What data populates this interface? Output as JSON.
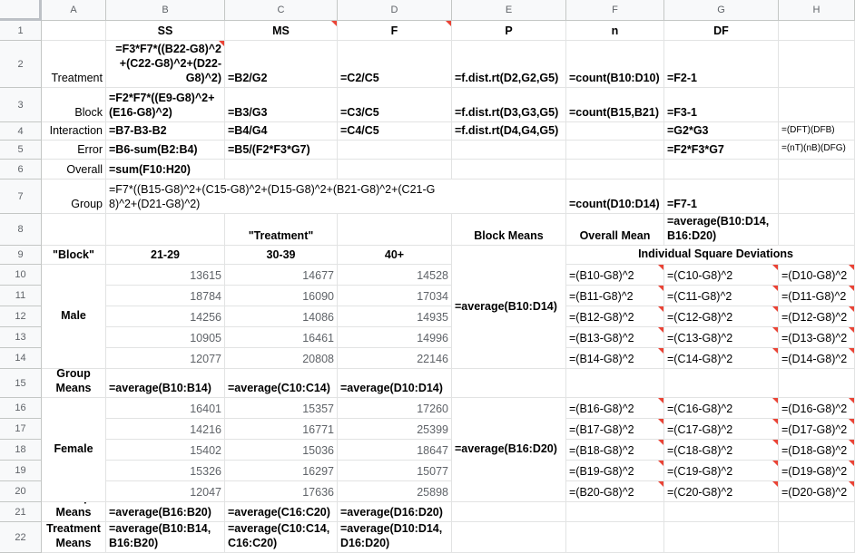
{
  "columns": [
    "A",
    "B",
    "C",
    "D",
    "E",
    "F",
    "G",
    "H"
  ],
  "rows": [
    "1",
    "2",
    "3",
    "4",
    "5",
    "6",
    "7",
    "8",
    "9",
    "10",
    "11",
    "12",
    "13",
    "14",
    "15",
    "16",
    "17",
    "18",
    "19",
    "20",
    "21",
    "22"
  ],
  "r1": {
    "B": "SS",
    "C": "MS",
    "D": "F",
    "E": "P",
    "F": "n",
    "G": "DF"
  },
  "r2": {
    "A": "Treatment",
    "B": "=F3*F7*((B22-G8)^2\n+(C22-G8)^2+(D22-\nG8)^2)",
    "C": "=B2/G2",
    "D": "=C2/C5",
    "E": "=f.dist.rt(D2,G2,G5)",
    "F": "=count(B10:D10)",
    "G": "=F2-1"
  },
  "r3": {
    "A": "Block",
    "B": "=F2*F7*((E9-G8)^2+\n(E16-G8)^2)",
    "C": "=B3/G3",
    "D": "=C3/C5",
    "E": "=f.dist.rt(D3,G3,G5)",
    "F": "=count(B15,B21)",
    "G": "=F3-1"
  },
  "r4": {
    "A": "Interaction",
    "B": "=B7-B3-B2",
    "C": "=B4/G4",
    "D": "=C4/C5",
    "E": "=f.dist.rt(D4,G4,G5)",
    "G": "=G2*G3",
    "H": "=(DFT)(DFB)"
  },
  "r5": {
    "A": "Error",
    "B": "=B6-sum(B2:B4)",
    "C": "=B5/(F2*F3*G7)",
    "G": "=F2*F3*G7",
    "H": "=(nT)(nB)(DFG)"
  },
  "r6": {
    "A": "Overall",
    "B": "=sum(F10:H20)"
  },
  "r7": {
    "A": "Group",
    "B": "=F7*((B15-G8)^2+(C15-G8)^2+(D15-G8)^2+(B21-G8)^2+(C21-G\n8)^2+(D21-G8)^2)",
    "F": "=count(D10:D14)",
    "G": "=F7-1"
  },
  "r8": {
    "C": "\"Treatment\"",
    "E": "Block Means",
    "F": "Overall Mean",
    "G": "=average(B10:D14,\nB16:D20)"
  },
  "r9": {
    "A": "\"Block\"",
    "B": "21-29",
    "C": "30-39",
    "D": "40+",
    "G": "Individual Square Deviations"
  },
  "male": {
    "label": "Male",
    "block_mean": "=average(B10:D14)",
    "values": [
      [
        "13615",
        "14677",
        "14528"
      ],
      [
        "18784",
        "16090",
        "17034"
      ],
      [
        "14256",
        "14086",
        "14935"
      ],
      [
        "10905",
        "16461",
        "14996"
      ],
      [
        "12077",
        "20808",
        "22146"
      ]
    ]
  },
  "female": {
    "label": "Female",
    "block_mean": "=average(B16:D20)",
    "values": [
      [
        "16401",
        "15357",
        "17260"
      ],
      [
        "14216",
        "16771",
        "25399"
      ],
      [
        "15402",
        "15036",
        "18647"
      ],
      [
        "15326",
        "16297",
        "15077"
      ],
      [
        "12047",
        "17636",
        "25898"
      ]
    ]
  },
  "dev_male": [
    [
      "=(B10-G8)^2",
      "=(C10-G8)^2",
      "=(D10-G8)^2"
    ],
    [
      "=(B11-G8)^2",
      "=(C11-G8)^2",
      "=(D11-G8)^2"
    ],
    [
      "=(B12-G8)^2",
      "=(C12-G8)^2",
      "=(D12-G8)^2"
    ],
    [
      "=(B13-G8)^2",
      "=(C13-G8)^2",
      "=(D13-G8)^2"
    ],
    [
      "=(B14-G8)^2",
      "=(C14-G8)^2",
      "=(D14-G8)^2"
    ]
  ],
  "dev_female": [
    [
      "=(B16-G8)^2",
      "=(C16-G8)^2",
      "=(D16-G8)^2"
    ],
    [
      "=(B17-G8)^2",
      "=(C17-G8)^2",
      "=(D17-G8)^2"
    ],
    [
      "=(B18-G8)^2",
      "=(C18-G8)^2",
      "=(D18-G8)^2"
    ],
    [
      "=(B19-G8)^2",
      "=(C19-G8)^2",
      "=(D19-G8)^2"
    ],
    [
      "=(B20-G8)^2",
      "=(C20-G8)^2",
      "=(D20-G8)^2"
    ]
  ],
  "r15": {
    "A": "Group\nMeans",
    "B": "=average(B10:B14)",
    "C": "=average(C10:C14)",
    "D": "=average(D10:D14)"
  },
  "r21": {
    "A": "Group\nMeans",
    "B": "=average(B16:B20)",
    "C": "=average(C16:C20)",
    "D": "=average(D16:D20)"
  },
  "r22": {
    "A": "Treatment\nMeans",
    "B": "=average(B10:B14,\nB16:B20)",
    "C": "=average(C10:C14,\nC16:C20)",
    "D": "=average(D10:D14,\nD16:D20)"
  }
}
